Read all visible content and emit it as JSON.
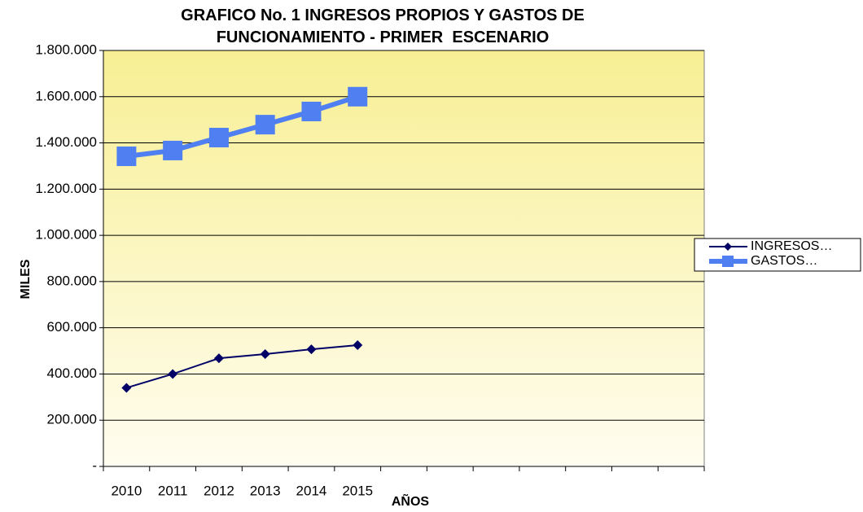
{
  "chart_data": {
    "type": "line",
    "title": "GRAFICO No. 1 INGRESOS PROPIOS Y GASTOS DE FUNCIONAMIENTO - PRIMER  ESCENARIO",
    "x_label": "AÑOS",
    "y_label": "MILES",
    "categories": [
      "2010",
      "2011",
      "2012",
      "2013",
      "2014",
      "2015",
      null,
      null,
      null,
      null,
      null,
      null,
      null
    ],
    "series": [
      {
        "name": "INGRESOS…",
        "color": "#000066",
        "marker": "diamond",
        "values": [
          340000,
          400000,
          468000,
          486000,
          507000,
          525000,
          null,
          null,
          null,
          null,
          null,
          null,
          null
        ]
      },
      {
        "name": "GASTOS…",
        "color": "#4f7ff0",
        "marker": "square",
        "values": [
          1342000,
          1367000,
          1423000,
          1479000,
          1536000,
          1600000,
          null,
          null,
          null,
          null,
          null,
          null,
          null
        ]
      }
    ],
    "ylim": [
      0,
      1800000
    ],
    "yticks": [
      {
        "value": 0,
        "label": "-"
      },
      {
        "value": 200000,
        "label": "200.000"
      },
      {
        "value": 400000,
        "label": "400.000"
      },
      {
        "value": 600000,
        "label": "600.000"
      },
      {
        "value": 800000,
        "label": "800.000"
      },
      {
        "value": 1000000,
        "label": "1.000.000"
      },
      {
        "value": 1200000,
        "label": "1.200.000"
      },
      {
        "value": 1400000,
        "label": "1.400.000"
      },
      {
        "value": 1600000,
        "label": "1.600.000"
      },
      {
        "value": 1800000,
        "label": "1.800.000"
      }
    ],
    "grid": true,
    "legend": "right"
  }
}
